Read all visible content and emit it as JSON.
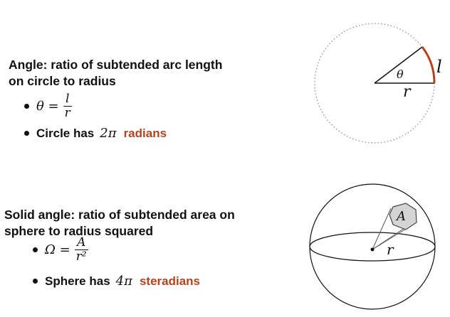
{
  "angle": {
    "heading_line1": "Angle: ratio of subtended arc length",
    "heading_line2": "on circle to radius",
    "formula_lhs": "θ =",
    "formula_num": "l",
    "formula_den": "r",
    "circle_text": "Circle has",
    "circle_value": "2π",
    "circle_unit": "radians"
  },
  "solid_angle": {
    "heading_line1": "Solid angle: ratio of subtended area on",
    "heading_line2": "sphere to radius squared",
    "formula_lhs": "Ω =",
    "formula_num": "A",
    "formula_den": "r²",
    "sphere_text": "Sphere has",
    "sphere_value": "4π",
    "sphere_unit": "steradians"
  },
  "circle_diagram": {
    "theta_label": "θ",
    "r_label": "r",
    "l_label": "l",
    "arc_color": "#b5421f"
  },
  "sphere_diagram": {
    "a_label": "A",
    "r_label": "r"
  },
  "colors": {
    "accent": "#b5421f",
    "text": "#111111"
  }
}
